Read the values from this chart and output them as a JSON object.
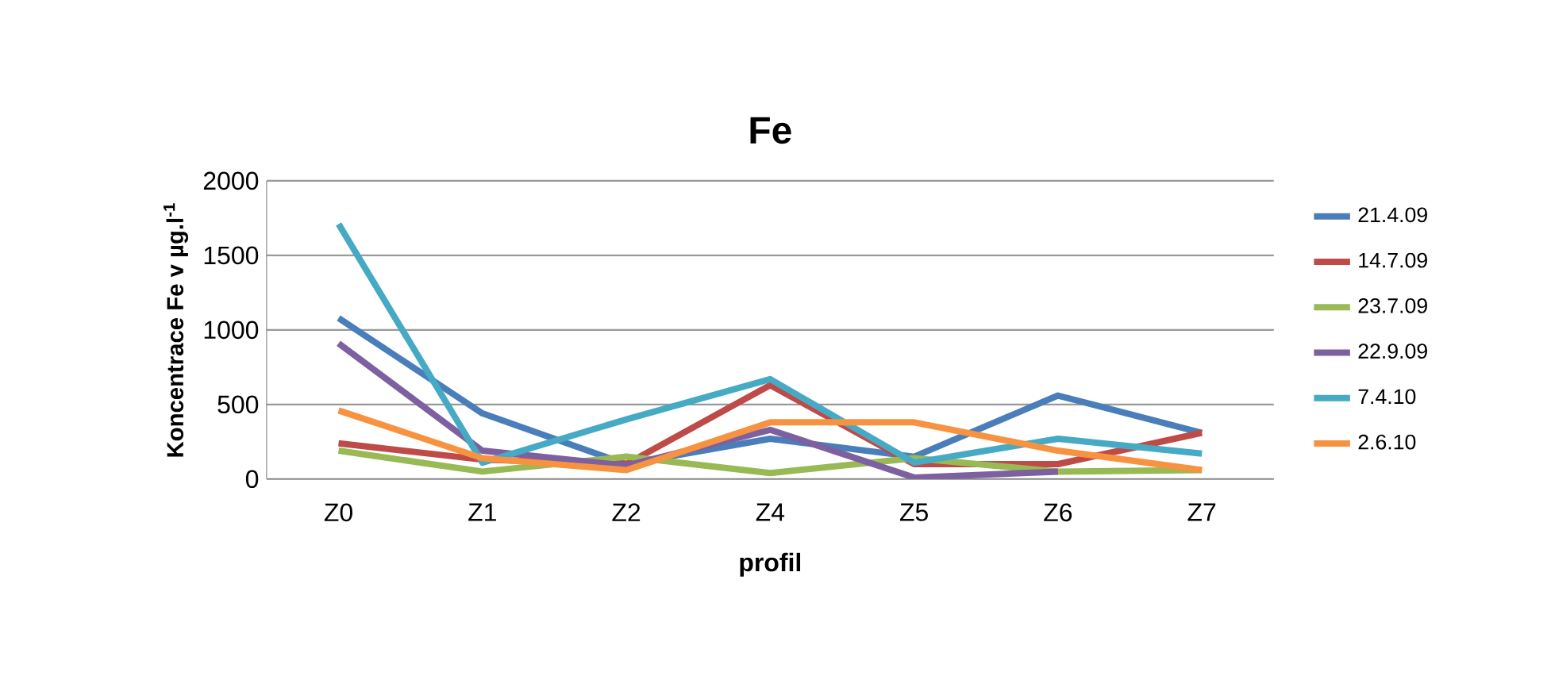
{
  "chart_data": {
    "type": "line",
    "title": "Fe",
    "xlabel": "profil",
    "ylabel": "Koncentrace Fe v µg.l$^{-1}$",
    "categories": [
      "Z0",
      "Z1",
      "Z2",
      "Z4",
      "Z5",
      "Z6",
      "Z7"
    ],
    "ylim": [
      0,
      2000
    ],
    "yticks": [
      0,
      500,
      1000,
      1500,
      2000
    ],
    "grid": "y",
    "legend": "right",
    "marker": "none",
    "line_style": "solid",
    "series": [
      {
        "name": "21.4.09",
        "color": "#4a7ebb",
        "values": [
          1080,
          440,
          100,
          270,
          150,
          560,
          310
        ]
      },
      {
        "name": "14.7.09",
        "color": "#be4b48",
        "values": [
          240,
          130,
          100,
          630,
          100,
          100,
          310
        ]
      },
      {
        "name": "23.7.09",
        "color": "#98b954",
        "values": [
          190,
          50,
          150,
          40,
          140,
          50,
          60
        ]
      },
      {
        "name": "22.9.09",
        "color": "#7d60a0",
        "values": [
          910,
          190,
          90,
          330,
          10,
          50,
          null
        ]
      },
      {
        "name": "7.4.10",
        "color": "#46aac5",
        "values": [
          1710,
          110,
          400,
          670,
          110,
          270,
          170
        ]
      },
      {
        "name": "2.6.10",
        "color": "#f69240",
        "values": [
          460,
          140,
          60,
          380,
          380,
          190,
          60
        ]
      }
    ]
  }
}
